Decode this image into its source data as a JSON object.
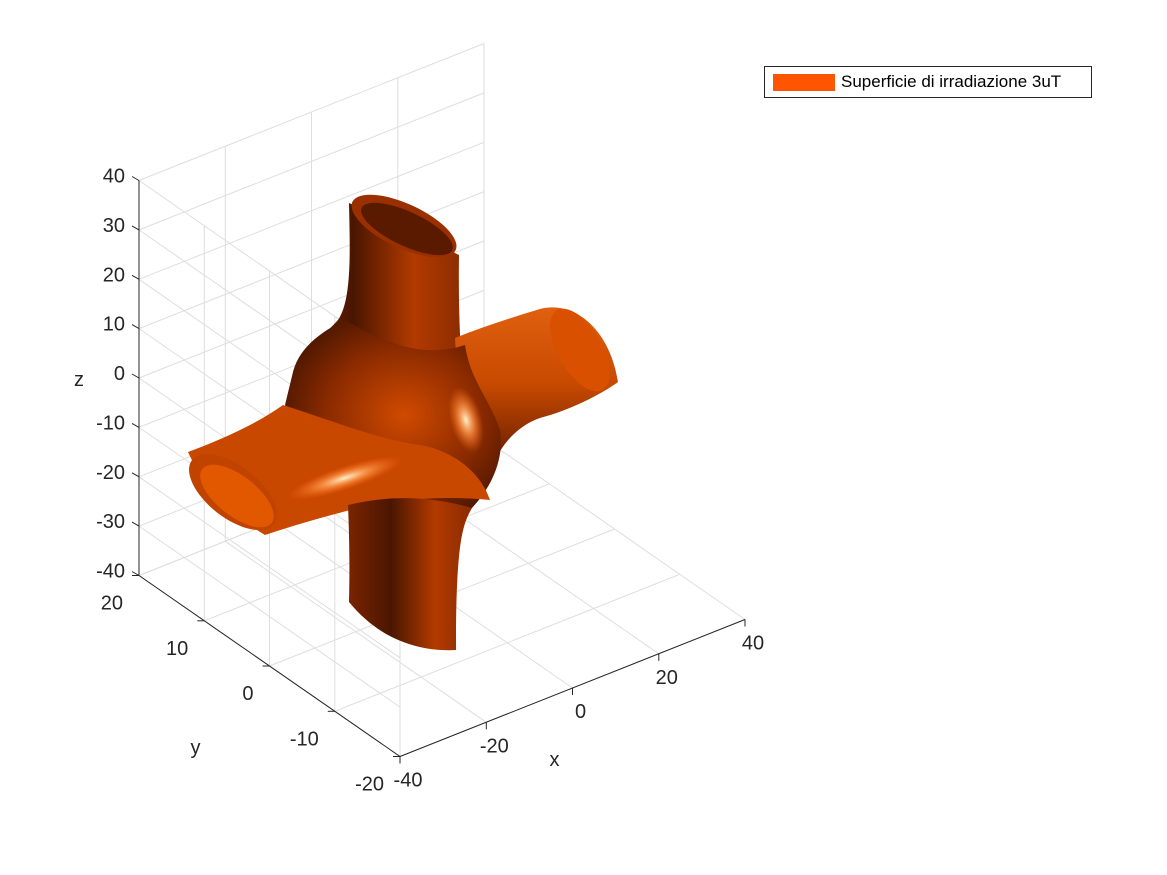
{
  "chart_data": {
    "type": "surface3d",
    "title": "",
    "xlabel": "x",
    "ylabel": "y",
    "zlabel": "z",
    "xlim": [
      -40,
      40
    ],
    "ylim": [
      -20,
      20
    ],
    "zlim": [
      -40,
      40
    ],
    "xticks": [
      -40,
      -20,
      0,
      20,
      40
    ],
    "yticks": [
      -20,
      -10,
      0,
      10,
      20
    ],
    "zticks": [
      -40,
      -30,
      -20,
      -10,
      0,
      10,
      20,
      30,
      40
    ],
    "x_tick_labels": [
      "-40",
      "-20",
      "0",
      "20",
      "40"
    ],
    "y_tick_labels": [
      "-20",
      "-10",
      "0",
      "10",
      "20"
    ],
    "z_tick_labels": [
      "-40",
      "-30",
      "-20",
      "-10",
      "0",
      "10",
      "20",
      "30",
      "40"
    ],
    "grid": true,
    "legend_position": "top-right",
    "series": [
      {
        "name": "Superficie di irradiazione 3uT",
        "color": "#ff5500",
        "shape": "crossed tubes (one along x, one along z) joined at the origin"
      }
    ]
  }
}
